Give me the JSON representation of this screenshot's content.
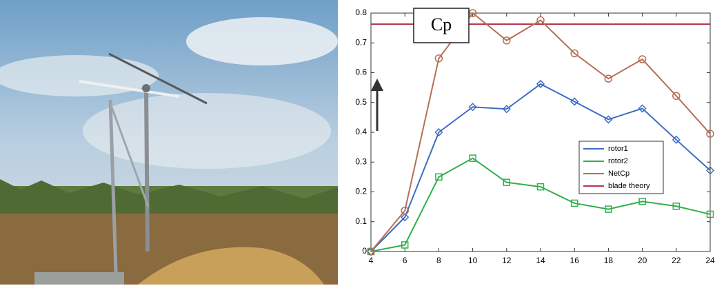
{
  "chart_data": {
    "type": "line",
    "annotation": "Cp",
    "x": [
      4,
      6,
      8,
      10,
      12,
      14,
      16,
      18,
      20,
      22,
      24
    ],
    "series": [
      {
        "name": "rotor1",
        "color": "#3d6cc2",
        "marker": "diamond",
        "values": [
          0,
          0.115,
          0.4,
          0.485,
          0.478,
          0.562,
          0.503,
          0.443,
          0.48,
          0.375,
          0.272
        ]
      },
      {
        "name": "rotor2",
        "color": "#2fb04a",
        "marker": "square",
        "values": [
          0,
          0.022,
          0.25,
          0.313,
          0.232,
          0.217,
          0.162,
          0.142,
          0.168,
          0.152,
          0.125
        ]
      },
      {
        "name": "NetCp",
        "color": "#b56f52",
        "marker": "circle",
        "values": [
          0,
          0.137,
          0.648,
          0.8,
          0.708,
          0.776,
          0.665,
          0.58,
          0.645,
          0.522,
          0.395
        ]
      },
      {
        "name": "blade theory",
        "color": "#b8344f",
        "marker": "none",
        "values": [
          0.763,
          0.763,
          0.763,
          0.763,
          0.763,
          0.763,
          0.763,
          0.763,
          0.763,
          0.763,
          0.763
        ]
      }
    ],
    "xlim": [
      4,
      24
    ],
    "xticks": [
      4,
      6,
      8,
      10,
      12,
      14,
      16,
      18,
      20,
      22,
      24
    ],
    "ylim": [
      0,
      0.8
    ],
    "yticks": [
      0,
      0.1,
      0.2,
      0.3,
      0.4,
      0.5,
      0.6,
      0.7,
      0.8
    ]
  }
}
